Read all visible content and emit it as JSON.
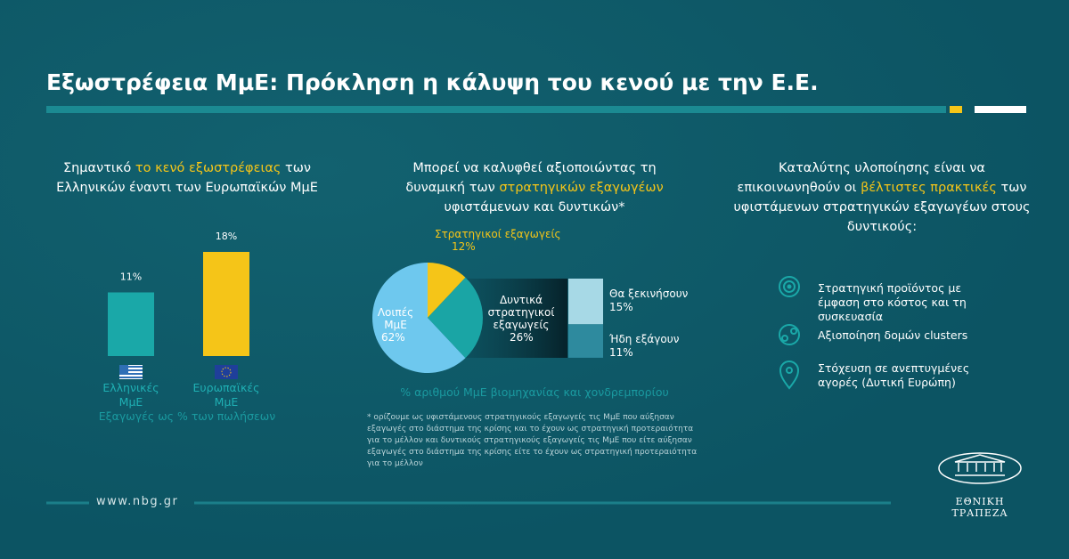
{
  "title": "Εξωστρέφεια ΜμΕ: Πρόκληση η κάλυψη του κενού με την Ε.Ε.",
  "highlight_color": "#f5c518",
  "panels": [
    {
      "heading_parts": [
        "Σημαντικό ",
        "το κενό εξωστρέφειας",
        " των Ελληνικών έναντι των Ευρωπαϊκών ΜμΕ"
      ]
    },
    {
      "heading_parts": [
        "Μπορεί να καλυφθεί αξιοποιώντας τη δυναμική των ",
        "στρατηγικών εξαγωγέων",
        " υφιστάμενων και δυντικών*"
      ]
    },
    {
      "heading_parts": [
        "Καταλύτης υλοποίησης είναι  να επικοινωνηθούν οι ",
        "βέλτιστες πρακτικές",
        " των υφιστάμενων στρατηγικών εξαγωγέων στους δυντικούς:"
      ]
    }
  ],
  "chart_data": [
    {
      "type": "bar",
      "categories": [
        "Ελληνικές ΜμΕ",
        "Ευρωπαϊκές ΜμΕ"
      ],
      "values": [
        11,
        18
      ],
      "value_labels": [
        "11%",
        "18%"
      ],
      "colors": [
        "#1aa8a8",
        "#f5c518"
      ],
      "xlabel": "Εξαγωγές ως % των πωλήσεων"
    },
    {
      "type": "pie",
      "categories": [
        "Στρατηγικοί εξαγωγείς",
        "Δυντικά στρατηγικοί εξαγωγείς",
        "Λοιπές ΜμΕ"
      ],
      "values": [
        12,
        26,
        62
      ],
      "value_labels": [
        "12%",
        "26%",
        "62%"
      ],
      "colors": [
        "#f5c518",
        "#1aa5a5",
        "#6ec8ee"
      ],
      "caption": "% αριθμού ΜμΕ βιομηχανίας και χονδρεμπορίου"
    },
    {
      "type": "stacked-bar",
      "series": [
        {
          "name": "Θα ξεκινήσουν",
          "color": "#a7d9e6",
          "values": [
            15
          ],
          "value_labels": [
            "15%"
          ]
        },
        {
          "name": "Ήδη εξάγουν",
          "color": "#2e8a9e",
          "values": [
            11
          ],
          "value_labels": [
            "11%"
          ]
        }
      ]
    }
  ],
  "footnote": "* ορίζουμε ως υφιστάμενους στρατηγικούς εξαγωγείς τις ΜμΕ που αύξησαν εξαγωγές στο διάστημα της κρίσης και το έχουν ως στρατηγική προτεραιότητα για το μέλλον και δυντικούς στρατηγικούς εξαγωγείς τις ΜμΕ που είτε αύξησαν εξαγωγές στο διάστημα της κρίσης είτε το έχουν ως στρατηγική προτεραιότητα για το μέλλον",
  "practices": [
    "Στρατηγική προϊόντος με έμφαση στο κόστος και τη συσκευασία",
    "Αξιοποίηση δομών clusters",
    "Στόχευση σε ανεπτυγμένες αγορές (Δυτική Ευρώπη)"
  ],
  "footer": "www.nbg.gr",
  "logo_text": "ΕΘΝΙΚΗ ΤΡΑΠΕΖΑ"
}
